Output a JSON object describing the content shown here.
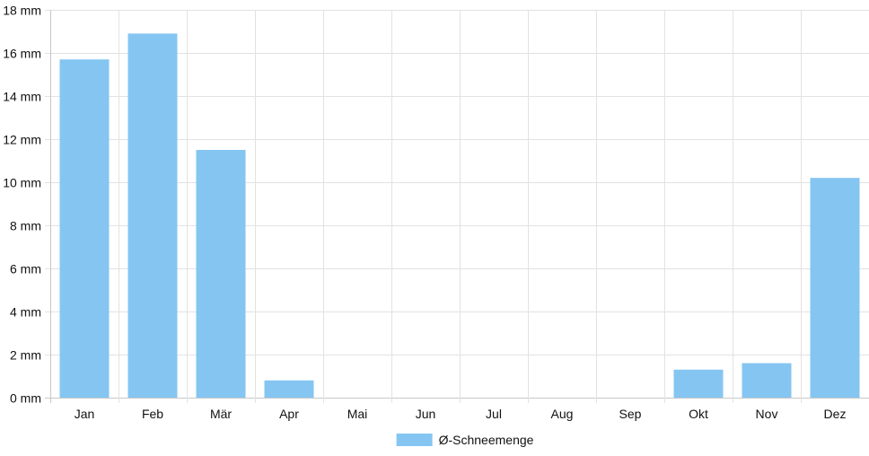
{
  "chart_data": {
    "type": "bar",
    "categories": [
      "Jan",
      "Feb",
      "Mär",
      "Apr",
      "Mai",
      "Jun",
      "Jul",
      "Aug",
      "Sep",
      "Okt",
      "Nov",
      "Dez"
    ],
    "series": [
      {
        "name": "Ø-Schneemenge",
        "values": [
          15.7,
          16.9,
          11.5,
          0.8,
          0,
          0,
          0,
          0,
          0,
          1.3,
          1.6,
          10.2
        ]
      }
    ],
    "ylim": [
      0,
      18
    ],
    "yticks": [
      0,
      2,
      4,
      6,
      8,
      10,
      12,
      14,
      16,
      18
    ],
    "y_unit": "mm",
    "grid": true,
    "legend_position": "bottom",
    "colors": {
      "bar": "#85c5f1",
      "grid": "#e2e2e2",
      "axis": "#c8c8c8",
      "text": "#111111"
    }
  }
}
